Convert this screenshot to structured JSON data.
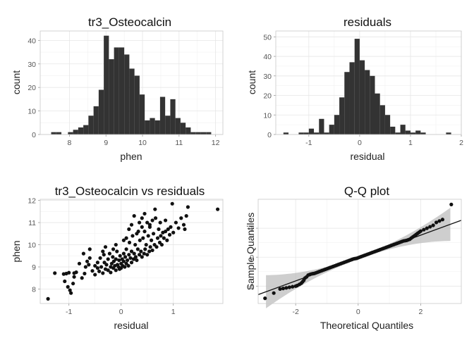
{
  "chart_data": [
    {
      "type": "bar",
      "title": "tr3_Osteocalcin",
      "xlabel": "phen",
      "ylabel": "count",
      "xlim": [
        7.2,
        12.2
      ],
      "ylim": [
        0,
        44
      ],
      "xticks": [
        8,
        9,
        10,
        11,
        12
      ],
      "yticks": [
        0,
        10,
        20,
        30,
        40
      ],
      "grid": true,
      "bins": [
        {
          "x0": 7.5,
          "x1": 7.64,
          "count": 1
        },
        {
          "x0": 7.64,
          "x1": 7.78,
          "count": 1
        },
        {
          "x0": 7.96,
          "x1": 8.1,
          "count": 1
        },
        {
          "x0": 8.1,
          "x1": 8.24,
          "count": 2
        },
        {
          "x0": 8.24,
          "x1": 8.38,
          "count": 3
        },
        {
          "x0": 8.38,
          "x1": 8.52,
          "count": 4
        },
        {
          "x0": 8.52,
          "x1": 8.66,
          "count": 8
        },
        {
          "x0": 8.66,
          "x1": 8.8,
          "count": 12
        },
        {
          "x0": 8.8,
          "x1": 8.94,
          "count": 19
        },
        {
          "x0": 8.94,
          "x1": 9.08,
          "count": 42
        },
        {
          "x0": 9.08,
          "x1": 9.22,
          "count": 32
        },
        {
          "x0": 9.22,
          "x1": 9.36,
          "count": 37
        },
        {
          "x0": 9.36,
          "x1": 9.5,
          "count": 37
        },
        {
          "x0": 9.5,
          "x1": 9.64,
          "count": 34
        },
        {
          "x0": 9.64,
          "x1": 9.78,
          "count": 28
        },
        {
          "x0": 9.78,
          "x1": 9.92,
          "count": 25
        },
        {
          "x0": 9.92,
          "x1": 10.06,
          "count": 17
        },
        {
          "x0": 10.06,
          "x1": 10.2,
          "count": 6
        },
        {
          "x0": 10.2,
          "x1": 10.34,
          "count": 7
        },
        {
          "x0": 10.34,
          "x1": 10.48,
          "count": 6
        },
        {
          "x0": 10.48,
          "x1": 10.62,
          "count": 16
        },
        {
          "x0": 10.62,
          "x1": 10.76,
          "count": 8
        },
        {
          "x0": 10.76,
          "x1": 10.9,
          "count": 15
        },
        {
          "x0": 10.9,
          "x1": 11.04,
          "count": 7
        },
        {
          "x0": 11.04,
          "x1": 11.18,
          "count": 5
        },
        {
          "x0": 11.18,
          "x1": 11.32,
          "count": 3
        },
        {
          "x0": 11.32,
          "x1": 11.46,
          "count": 1
        },
        {
          "x0": 11.46,
          "x1": 11.6,
          "count": 1
        },
        {
          "x0": 11.6,
          "x1": 11.74,
          "count": 1
        },
        {
          "x0": 11.74,
          "x1": 11.88,
          "count": 1
        }
      ]
    },
    {
      "type": "bar",
      "title": "residuals",
      "xlabel": "residual",
      "ylabel": "count",
      "xlim": [
        -1.65,
        2.0
      ],
      "ylim": [
        0,
        53
      ],
      "xticks": [
        -1,
        0,
        1,
        2
      ],
      "yticks": [
        0,
        10,
        20,
        30,
        40,
        50
      ],
      "grid": true,
      "bins": [
        {
          "x0": -1.5,
          "x1": -1.4,
          "count": 1
        },
        {
          "x0": -1.2,
          "x1": -1.1,
          "count": 1
        },
        {
          "x0": -1.1,
          "x1": -1.0,
          "count": 1
        },
        {
          "x0": -1.0,
          "x1": -0.9,
          "count": 3
        },
        {
          "x0": -0.9,
          "x1": -0.8,
          "count": 1
        },
        {
          "x0": -0.8,
          "x1": -0.7,
          "count": 8
        },
        {
          "x0": -0.7,
          "x1": -0.6,
          "count": 1
        },
        {
          "x0": -0.6,
          "x1": -0.5,
          "count": 5
        },
        {
          "x0": -0.5,
          "x1": -0.4,
          "count": 10
        },
        {
          "x0": -0.4,
          "x1": -0.3,
          "count": 19
        },
        {
          "x0": -0.3,
          "x1": -0.2,
          "count": 32
        },
        {
          "x0": -0.2,
          "x1": -0.1,
          "count": 37
        },
        {
          "x0": -0.1,
          "x1": 0.0,
          "count": 49
        },
        {
          "x0": 0.0,
          "x1": 0.1,
          "count": 38
        },
        {
          "x0": 0.1,
          "x1": 0.2,
          "count": 33
        },
        {
          "x0": 0.2,
          "x1": 0.3,
          "count": 30
        },
        {
          "x0": 0.3,
          "x1": 0.4,
          "count": 21
        },
        {
          "x0": 0.4,
          "x1": 0.5,
          "count": 15
        },
        {
          "x0": 0.5,
          "x1": 0.6,
          "count": 10
        },
        {
          "x0": 0.6,
          "x1": 0.7,
          "count": 4
        },
        {
          "x0": 0.7,
          "x1": 0.8,
          "count": 1
        },
        {
          "x0": 0.8,
          "x1": 0.9,
          "count": 5
        },
        {
          "x0": 0.9,
          "x1": 1.0,
          "count": 2
        },
        {
          "x0": 1.0,
          "x1": 1.1,
          "count": 1
        },
        {
          "x0": 1.1,
          "x1": 1.2,
          "count": 2
        },
        {
          "x0": 1.2,
          "x1": 1.3,
          "count": 1
        },
        {
          "x0": 1.7,
          "x1": 1.8,
          "count": 1
        }
      ]
    },
    {
      "type": "scatter",
      "title": "tr3_Osteocalcin vs residuals",
      "xlabel": "residual",
      "ylabel": "phen",
      "xlim": [
        -1.55,
        1.95
      ],
      "ylim": [
        7.35,
        12.05
      ],
      "xticks": [
        -1,
        0,
        1
      ],
      "yticks": [
        8,
        9,
        10,
        11,
        12
      ],
      "grid": true,
      "points": [
        [
          -1.4,
          7.56
        ],
        [
          -1.27,
          8.72
        ],
        [
          -1.1,
          8.68
        ],
        [
          -1.05,
          8.7
        ],
        [
          -1.0,
          8.74
        ],
        [
          -1.08,
          8.35
        ],
        [
          -1.02,
          8.1
        ],
        [
          -0.98,
          7.95
        ],
        [
          -0.96,
          7.82
        ],
        [
          -0.92,
          8.25
        ],
        [
          -0.9,
          8.72
        ],
        [
          -0.86,
          8.76
        ],
        [
          -0.9,
          8.55
        ],
        [
          -0.75,
          8.5
        ],
        [
          -0.7,
          8.7
        ],
        [
          -0.72,
          9.6
        ],
        [
          -0.68,
          9.0
        ],
        [
          -0.62,
          9.1
        ],
        [
          -0.6,
          9.8
        ],
        [
          -0.65,
          9.25
        ],
        [
          -0.55,
          8.82
        ],
        [
          -0.5,
          8.65
        ],
        [
          -0.5,
          9.05
        ],
        [
          -0.45,
          9.2
        ],
        [
          -0.42,
          8.8
        ],
        [
          -0.4,
          9.4
        ],
        [
          -0.38,
          9.0
        ],
        [
          -0.35,
          8.72
        ],
        [
          -0.33,
          9.55
        ],
        [
          -0.32,
          9.2
        ],
        [
          -0.3,
          8.9
        ],
        [
          -0.28,
          9.1
        ],
        [
          -0.25,
          8.85
        ],
        [
          -0.25,
          9.35
        ],
        [
          -0.22,
          9.6
        ],
        [
          -0.2,
          9.0
        ],
        [
          -0.2,
          8.75
        ],
        [
          -0.18,
          9.15
        ],
        [
          -0.16,
          9.45
        ],
        [
          -0.15,
          8.95
        ],
        [
          -0.14,
          9.25
        ],
        [
          -0.12,
          9.05
        ],
        [
          -0.1,
          8.85
        ],
        [
          -0.1,
          9.35
        ],
        [
          -0.08,
          9.7
        ],
        [
          -0.07,
          9.1
        ],
        [
          -0.05,
          9.0
        ],
        [
          -0.04,
          9.3
        ],
        [
          -0.03,
          8.9
        ],
        [
          -0.02,
          9.5
        ],
        [
          0.0,
          9.15
        ],
        [
          0.0,
          8.95
        ],
        [
          0.02,
          9.35
        ],
        [
          0.03,
          9.05
        ],
        [
          0.05,
          9.25
        ],
        [
          0.05,
          9.6
        ],
        [
          0.07,
          9.0
        ],
        [
          0.08,
          9.45
        ],
        [
          0.1,
          9.15
        ],
        [
          0.1,
          9.8
        ],
        [
          0.12,
          9.3
        ],
        [
          0.14,
          9.05
        ],
        [
          0.15,
          9.55
        ],
        [
          0.16,
          10.1
        ],
        [
          0.18,
          9.4
        ],
        [
          0.2,
          9.2
        ],
        [
          0.2,
          9.7
        ],
        [
          0.22,
          10.4
        ],
        [
          0.24,
          9.35
        ],
        [
          0.25,
          9.6
        ],
        [
          0.27,
          10.0
        ],
        [
          0.28,
          9.45
        ],
        [
          0.3,
          10.5
        ],
        [
          0.3,
          9.3
        ],
        [
          0.32,
          9.8
        ],
        [
          0.33,
          10.6
        ],
        [
          0.35,
          9.55
        ],
        [
          0.36,
          10.2
        ],
        [
          0.38,
          9.7
        ],
        [
          0.4,
          10.8
        ],
        [
          0.4,
          9.45
        ],
        [
          0.42,
          10.3
        ],
        [
          0.44,
          9.6
        ],
        [
          0.45,
          10.6
        ],
        [
          0.46,
          9.8
        ],
        [
          0.48,
          10.0
        ],
        [
          0.5,
          11.0
        ],
        [
          0.5,
          9.55
        ],
        [
          0.52,
          10.4
        ],
        [
          0.54,
          9.7
        ],
        [
          0.55,
          10.8
        ],
        [
          0.56,
          9.9
        ],
        [
          0.58,
          10.2
        ],
        [
          0.6,
          11.1
        ],
        [
          0.6,
          9.75
        ],
        [
          0.62,
          10.5
        ],
        [
          0.64,
          10.0
        ],
        [
          0.66,
          11.2
        ],
        [
          0.68,
          9.9
        ],
        [
          0.7,
          10.3
        ],
        [
          0.72,
          10.7
        ],
        [
          0.74,
          10.1
        ],
        [
          0.76,
          10.4
        ],
        [
          0.78,
          10.0
        ],
        [
          0.8,
          10.55
        ],
        [
          0.82,
          10.3
        ],
        [
          0.85,
          10.6
        ],
        [
          0.88,
          10.2
        ],
        [
          0.9,
          10.7
        ],
        [
          0.93,
          10.45
        ],
        [
          0.95,
          10.8
        ],
        [
          1.0,
          10.55
        ],
        [
          1.05,
          11.0
        ],
        [
          1.1,
          10.75
        ],
        [
          1.15,
          11.2
        ],
        [
          1.2,
          10.9
        ],
        [
          1.25,
          11.3
        ],
        [
          1.28,
          11.7
        ],
        [
          1.22,
          10.7
        ],
        [
          0.98,
          11.85
        ],
        [
          1.85,
          11.6
        ],
        [
          0.15,
          10.7
        ],
        [
          0.25,
          11.3
        ],
        [
          0.1,
          10.3
        ],
        [
          -0.1,
          10.0
        ],
        [
          -0.3,
          9.9
        ],
        [
          0.35,
          11.0
        ],
        [
          0.45,
          11.4
        ],
        [
          0.55,
          10.9
        ],
        [
          0.65,
          11.6
        ],
        [
          -0.6,
          9.4
        ],
        [
          -0.8,
          9.15
        ],
        [
          -0.45,
          8.95
        ],
        [
          0.75,
          11.0
        ],
        [
          0.85,
          11.1
        ],
        [
          -0.35,
          9.7
        ],
        [
          0.05,
          10.2
        ],
        [
          -0.15,
          9.8
        ],
        [
          0.4,
          11.2
        ],
        [
          0.2,
          10.9
        ]
      ]
    },
    {
      "type": "scatter",
      "title": "Q-Q plot",
      "xlabel": "Theoretical Quantiles",
      "ylabel": "Sample Quantiles",
      "xlim": [
        -3.2,
        3.3
      ],
      "ylim": [
        -1.6,
        2.0
      ],
      "xticks": [
        -2,
        0,
        2
      ],
      "yticks": [
        -1,
        0,
        1
      ],
      "grid": true,
      "reference_line": {
        "slope": 0.395,
        "intercept": -0.03
      },
      "band_color": "#bdbdbd",
      "points": [
        [
          -2.98,
          -1.42
        ],
        [
          -2.7,
          -1.24
        ],
        [
          -2.5,
          -1.1
        ],
        [
          -2.4,
          -1.08
        ],
        [
          -2.3,
          -1.06
        ],
        [
          -2.2,
          -1.04
        ],
        [
          -2.1,
          -1.02
        ],
        [
          -2.0,
          -1.0
        ],
        [
          -1.95,
          -0.98
        ],
        [
          -1.88,
          -0.94
        ],
        [
          -1.82,
          -0.9
        ],
        [
          -1.78,
          -0.85
        ],
        [
          -1.74,
          -0.8
        ],
        [
          -1.7,
          -0.72
        ],
        [
          -1.65,
          -0.68
        ],
        [
          -1.6,
          -0.62
        ],
        [
          -1.55,
          -0.6
        ],
        [
          -1.5,
          -0.58
        ],
        [
          -1.45,
          -0.57
        ],
        [
          -1.4,
          -0.56
        ],
        [
          -1.35,
          -0.54
        ],
        [
          -1.3,
          -0.52
        ],
        [
          -1.25,
          -0.5
        ],
        [
          -1.2,
          -0.48
        ],
        [
          -1.15,
          -0.46
        ],
        [
          -1.1,
          -0.44
        ],
        [
          -1.05,
          -0.42
        ],
        [
          -1.0,
          -0.4
        ],
        [
          -0.95,
          -0.38
        ],
        [
          -0.9,
          -0.36
        ],
        [
          -0.85,
          -0.34
        ],
        [
          -0.8,
          -0.32
        ],
        [
          -0.75,
          -0.3
        ],
        [
          -0.7,
          -0.28
        ],
        [
          -0.65,
          -0.26
        ],
        [
          -0.6,
          -0.24
        ],
        [
          -0.55,
          -0.22
        ],
        [
          -0.5,
          -0.2
        ],
        [
          -0.45,
          -0.18
        ],
        [
          -0.4,
          -0.16
        ],
        [
          -0.35,
          -0.14
        ],
        [
          -0.3,
          -0.12
        ],
        [
          -0.25,
          -0.1
        ],
        [
          -0.2,
          -0.08
        ],
        [
          -0.15,
          -0.06
        ],
        [
          -0.1,
          -0.05
        ],
        [
          -0.05,
          -0.04
        ],
        [
          0.0,
          -0.02
        ],
        [
          0.05,
          0.0
        ],
        [
          0.1,
          0.02
        ],
        [
          0.15,
          0.04
        ],
        [
          0.2,
          0.06
        ],
        [
          0.25,
          0.08
        ],
        [
          0.3,
          0.1
        ],
        [
          0.35,
          0.12
        ],
        [
          0.4,
          0.14
        ],
        [
          0.45,
          0.16
        ],
        [
          0.5,
          0.18
        ],
        [
          0.55,
          0.2
        ],
        [
          0.6,
          0.22
        ],
        [
          0.65,
          0.24
        ],
        [
          0.7,
          0.26
        ],
        [
          0.75,
          0.28
        ],
        [
          0.8,
          0.3
        ],
        [
          0.85,
          0.32
        ],
        [
          0.9,
          0.34
        ],
        [
          0.95,
          0.36
        ],
        [
          1.0,
          0.38
        ],
        [
          1.05,
          0.4
        ],
        [
          1.1,
          0.42
        ],
        [
          1.15,
          0.44
        ],
        [
          1.2,
          0.46
        ],
        [
          1.25,
          0.48
        ],
        [
          1.3,
          0.5
        ],
        [
          1.35,
          0.52
        ],
        [
          1.4,
          0.54
        ],
        [
          1.45,
          0.56
        ],
        [
          1.5,
          0.57
        ],
        [
          1.55,
          0.58
        ],
        [
          1.6,
          0.6
        ],
        [
          1.65,
          0.62
        ],
        [
          1.7,
          0.66
        ],
        [
          1.75,
          0.7
        ],
        [
          1.8,
          0.74
        ],
        [
          1.85,
          0.78
        ],
        [
          1.9,
          0.82
        ],
        [
          1.95,
          0.86
        ],
        [
          2.0,
          0.9
        ],
        [
          2.1,
          0.95
        ],
        [
          2.2,
          1.0
        ],
        [
          2.3,
          1.05
        ],
        [
          2.4,
          1.1
        ],
        [
          2.5,
          1.2
        ],
        [
          2.6,
          1.25
        ],
        [
          2.7,
          1.3
        ],
        [
          2.98,
          1.82
        ]
      ]
    }
  ]
}
